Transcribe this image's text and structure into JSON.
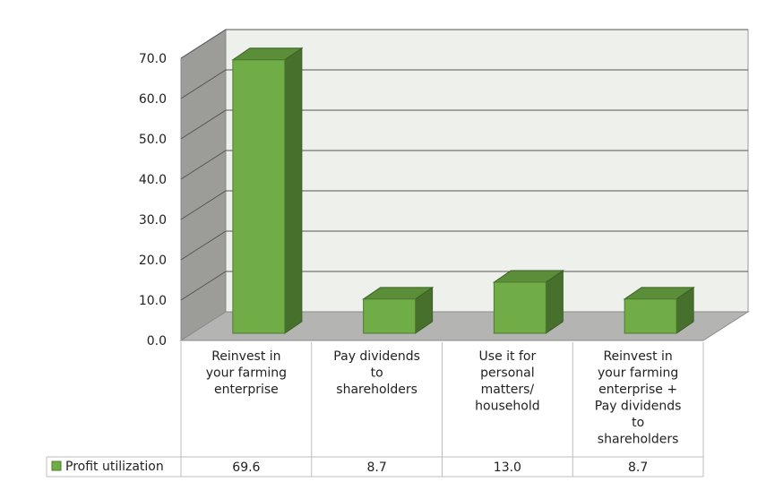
{
  "chart_data": {
    "type": "bar",
    "title": "",
    "xlabel": "",
    "ylabel": "",
    "categories": [
      [
        "Reinvest in",
        "your farming",
        "enterprise"
      ],
      [
        "Pay dividends",
        "to",
        "shareholders"
      ],
      [
        "Use it for",
        "personal",
        "matters/",
        "household"
      ],
      [
        "Reinvest in",
        "your farming",
        "enterprise +",
        "Pay dividends",
        "to",
        "shareholders"
      ]
    ],
    "series": [
      {
        "name": "Profit utilization",
        "values": [
          69.6,
          8.7,
          13.0,
          8.7
        ]
      }
    ],
    "value_labels": [
      "69.6",
      "8.7",
      "13.0",
      "8.7"
    ],
    "ylim": [
      0,
      70
    ],
    "yticks": [
      "0.0",
      "10.0",
      "20.0",
      "30.0",
      "40.0",
      "50.0",
      "60.0",
      "70.0"
    ],
    "grid": true,
    "legend": "data-table-left",
    "data_table": true,
    "three_d": true,
    "colors": {
      "bar_front": "#70ad47",
      "bar_side": "#46702c",
      "bar_top": "#5a8e38",
      "back_wall": "#eef1eb",
      "side_wall": "#9c9d99",
      "floor": "#b4b5b2",
      "grid": "#555555",
      "table_border": "#bdbdbd"
    }
  }
}
